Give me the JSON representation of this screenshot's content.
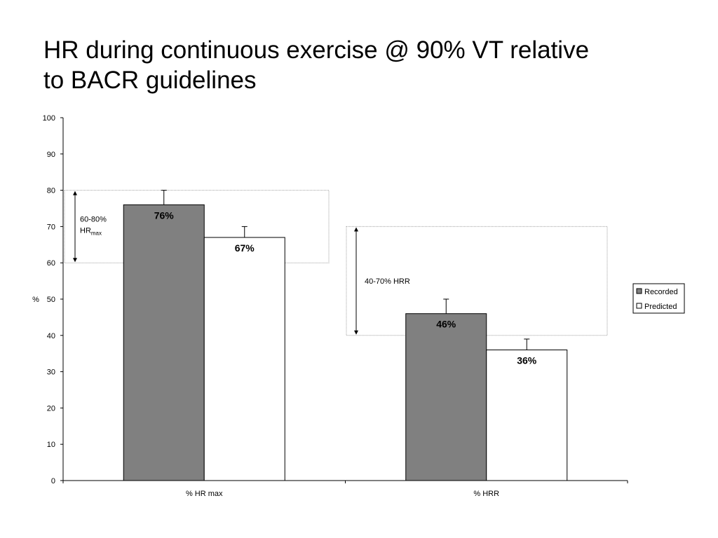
{
  "slide": {
    "title_line1": "HR during continuous exercise @ 90% VT relative",
    "title_line2": "to BACR guidelines"
  },
  "chart_data": {
    "type": "bar",
    "categories": [
      "% HR max",
      "% HRR"
    ],
    "series": [
      {
        "name": "Recorded",
        "values": [
          76,
          46
        ],
        "error_upper": [
          80,
          50
        ],
        "labels": [
          "76%",
          "46%"
        ],
        "color": "#808080"
      },
      {
        "name": "Predicted",
        "values": [
          67,
          36
        ],
        "error_upper": [
          70,
          39
        ],
        "labels": [
          "67%",
          "36%"
        ],
        "color": "#ffffff"
      }
    ],
    "ylabel": "%",
    "ylim": [
      0,
      100
    ],
    "yticks": [
      0,
      10,
      20,
      30,
      40,
      50,
      60,
      70,
      80,
      90,
      100
    ],
    "grid": false,
    "legend_position": "right",
    "guideline_ranges": [
      {
        "category": "% HR max",
        "low": 60,
        "high": 80,
        "label": "60-80%",
        "label_base": "HR",
        "label_sub": "max"
      },
      {
        "category": "% HRR",
        "low": 40,
        "high": 70,
        "label": "40-70% HRR",
        "label_base": "",
        "label_sub": ""
      }
    ]
  }
}
